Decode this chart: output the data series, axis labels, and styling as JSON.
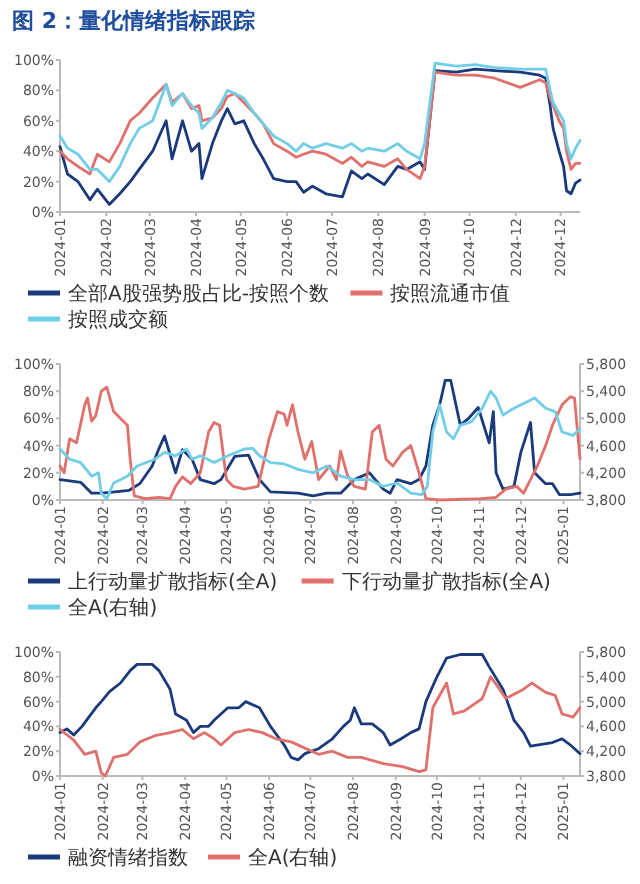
{
  "chart_data": [
    {
      "type": "line",
      "title": "图 2：量化情绪指标跟踪",
      "legend": "bottom",
      "x": [
        "2024-01-01",
        "2024-01-06",
        "2024-01-13",
        "2024-01-21",
        "2024-01-26",
        "2024-02-03",
        "2024-02-10",
        "2024-02-17",
        "2024-02-23",
        "2024-03-03",
        "2024-03-12",
        "2024-03-16",
        "2024-03-23",
        "2024-03-29",
        "2024-04-03",
        "2024-04-05",
        "2024-04-12",
        "2024-04-18",
        "2024-04-22",
        "2024-04-27",
        "2024-05-03",
        "2024-05-10",
        "2024-05-16",
        "2024-05-23",
        "2024-06-01",
        "2024-06-07",
        "2024-06-12",
        "2024-06-18",
        "2024-06-27",
        "2024-07-08",
        "2024-07-14",
        "2024-07-21",
        "2024-07-25",
        "2024-08-05",
        "2024-08-14",
        "2024-08-20",
        "2024-08-29",
        "2024-09-01",
        "2024-09-08",
        "2024-09-22",
        "2024-10-05",
        "2024-10-18",
        "2024-11-04",
        "2024-11-17",
        "2024-11-21",
        "2024-11-24",
        "2024-11-26",
        "2024-11-30",
        "2024-12-03",
        "2024-12-05",
        "2024-12-08",
        "2024-12-11",
        "2024-12-14"
      ],
      "xlim": [
        "2024-01-01",
        "2024-12-14"
      ],
      "xticks": [
        "2024-01",
        "2024-02",
        "2024-03",
        "2024-04",
        "2024-05",
        "2024-06",
        "2024-07",
        "2024-08",
        "2024-09",
        "2024-10",
        {
          "value": "2024-11",
          "label": "2024-12"
        },
        "2024-12"
      ],
      "ylim": [
        0,
        100
      ],
      "yticks": [
        {
          "value": 0,
          "label": "0%"
        },
        {
          "value": 20,
          "label": "20%"
        },
        {
          "value": 40,
          "label": "40%"
        },
        {
          "value": 60,
          "label": "60%"
        },
        {
          "value": 80,
          "label": "80%"
        },
        {
          "value": 100,
          "label": "100%"
        }
      ],
      "series": [
        {
          "name": "全部A股强势股占比-按照个数",
          "color": "#1a3a7c",
          "values": [
            43,
            25,
            20,
            8,
            15,
            5,
            12,
            20,
            28,
            40,
            60,
            35,
            60,
            40,
            45,
            22,
            45,
            60,
            68,
            58,
            60,
            45,
            35,
            22,
            20,
            20,
            13,
            17,
            12,
            10,
            27,
            22,
            25,
            18,
            30,
            28,
            33,
            28,
            93,
            92,
            94,
            93,
            92,
            90,
            88,
            70,
            55,
            40,
            30,
            14,
            12,
            19,
            21
          ]
        },
        {
          "name": "按照流通市值",
          "color": "#e0706c",
          "values": [
            40,
            35,
            30,
            25,
            38,
            33,
            45,
            60,
            65,
            75,
            84,
            72,
            78,
            68,
            70,
            60,
            62,
            68,
            76,
            78,
            72,
            65,
            58,
            45,
            40,
            36,
            38,
            40,
            38,
            32,
            36,
            30,
            33,
            30,
            35,
            28,
            22,
            30,
            92,
            90,
            90,
            88,
            82,
            87,
            85,
            75,
            70,
            60,
            55,
            40,
            28,
            32,
            32
          ]
        },
        {
          "name": "按照成交额",
          "color": "#72cde6",
          "values": [
            50,
            42,
            38,
            28,
            28,
            20,
            30,
            45,
            55,
            60,
            84,
            70,
            78,
            70,
            65,
            55,
            62,
            72,
            80,
            78,
            75,
            65,
            58,
            50,
            45,
            40,
            45,
            42,
            45,
            42,
            45,
            40,
            42,
            40,
            45,
            40,
            35,
            45,
            98,
            96,
            97,
            95,
            94,
            94,
            94,
            80,
            72,
            65,
            60,
            45,
            35,
            42,
            47
          ]
        }
      ]
    },
    {
      "type": "line",
      "legend": "bottom",
      "xlim": [
        "2024-01-01",
        "2025-01-13"
      ],
      "xticks": [
        "2024-01",
        "2024-02",
        "2024-03",
        "2024-04",
        "2024-05",
        "2024-06",
        "2024-07",
        "2024-08",
        "2024-09",
        "2024-10",
        "2024-11",
        "2024-12",
        "2025-01"
      ],
      "ylim": [
        0,
        100
      ],
      "yticks": [
        {
          "value": 0,
          "label": "0%"
        },
        {
          "value": 20,
          "label": "20%"
        },
        {
          "value": 40,
          "label": "40%"
        },
        {
          "value": 60,
          "label": "60%"
        },
        {
          "value": 80,
          "label": "80%"
        },
        {
          "value": 100,
          "label": "100%"
        }
      ],
      "y2lim": [
        3800,
        5800
      ],
      "y2ticks": [
        {
          "value": 3800,
          "label": "3,800"
        },
        {
          "value": 4200,
          "label": "4,200"
        },
        {
          "value": 4600,
          "label": "4,600"
        },
        {
          "value": 5000,
          "label": "5,000"
        },
        {
          "value": 5400,
          "label": "5,400"
        },
        {
          "value": 5800,
          "label": "5,800"
        }
      ],
      "series": [
        {
          "name": "上行动量扩散指标(全A)",
          "color": "#1a3a7c",
          "x": [
            "2024-01-01",
            "2024-01-08",
            "2024-01-16",
            "2024-01-24",
            "2024-01-31",
            "2024-02-10",
            "2024-02-20",
            "2024-02-28",
            "2024-03-08",
            "2024-03-13",
            "2024-03-17",
            "2024-03-25",
            "2024-03-30",
            "2024-04-06",
            "2024-04-12",
            "2024-04-22",
            "2024-04-27",
            "2024-05-07",
            "2024-05-17",
            "2024-05-25",
            "2024-06-02",
            "2024-06-22",
            "2024-07-03",
            "2024-07-13",
            "2024-07-23",
            "2024-08-02",
            "2024-08-13",
            "2024-08-23",
            "2024-08-28",
            "2024-09-02",
            "2024-09-12",
            "2024-09-18",
            "2024-09-23",
            "2024-09-28",
            "2024-10-03",
            "2024-10-07",
            "2024-10-11",
            "2024-10-18",
            "2024-10-24",
            "2024-10-31",
            "2024-11-08",
            "2024-11-11",
            "2024-11-13",
            "2024-11-18",
            "2024-11-26",
            "2024-12-01",
            "2024-12-08",
            "2024-12-11",
            "2024-12-19",
            "2024-12-24",
            "2024-12-29",
            "2025-01-06",
            "2025-01-13"
          ],
          "values": [
            15,
            14,
            13,
            5,
            5,
            6,
            7,
            12,
            25,
            38,
            47,
            20,
            37,
            30,
            15,
            12,
            15,
            32,
            33,
            15,
            6,
            5,
            3,
            5,
            5,
            15,
            20,
            8,
            5,
            15,
            12,
            15,
            25,
            55,
            70,
            88,
            88,
            55,
            60,
            68,
            42,
            65,
            20,
            8,
            10,
            35,
            57,
            20,
            12,
            12,
            4,
            4,
            5
          ]
        },
        {
          "name": "下行动量扩散指标(全A)",
          "color": "#e0706c",
          "x": [
            "2024-01-01",
            "2024-01-04",
            "2024-01-08",
            "2024-01-13",
            "2024-01-19",
            "2024-01-21",
            "2024-01-24",
            "2024-01-27",
            "2024-01-31",
            "2024-02-04",
            "2024-02-09",
            "2024-02-14",
            "2024-02-19",
            "2024-02-21",
            "2024-02-24",
            "2024-03-03",
            "2024-03-13",
            "2024-03-21",
            "2024-03-25",
            "2024-03-30",
            "2024-04-05",
            "2024-04-12",
            "2024-04-18",
            "2024-04-22",
            "2024-04-26",
            "2024-05-01",
            "2024-05-06",
            "2024-05-14",
            "2024-05-24",
            "2024-06-01",
            "2024-06-07",
            "2024-06-12",
            "2024-06-14",
            "2024-06-18",
            "2024-06-22",
            "2024-06-27",
            "2024-07-02",
            "2024-07-07",
            "2024-07-15",
            "2024-07-20",
            "2024-07-23",
            "2024-07-28",
            "2024-08-02",
            "2024-08-10",
            "2024-08-15",
            "2024-08-20",
            "2024-08-25",
            "2024-08-30",
            "2024-09-06",
            "2024-09-12",
            "2024-09-18",
            "2024-09-23",
            "2024-10-03",
            "2024-11-02",
            "2024-11-13",
            "2024-11-20",
            "2024-11-28",
            "2024-12-03",
            "2024-12-08",
            "2024-12-13",
            "2024-12-19",
            "2024-12-24",
            "2024-12-31",
            "2025-01-06",
            "2025-01-09",
            "2025-01-13"
          ],
          "values": [
            25,
            20,
            45,
            42,
            70,
            75,
            58,
            62,
            80,
            83,
            65,
            60,
            55,
            30,
            3,
            1,
            2,
            1,
            10,
            17,
            12,
            20,
            50,
            57,
            55,
            15,
            10,
            8,
            10,
            45,
            65,
            63,
            55,
            70,
            50,
            30,
            43,
            15,
            25,
            15,
            36,
            18,
            10,
            8,
            50,
            55,
            30,
            25,
            35,
            40,
            20,
            1,
            0,
            1,
            2,
            8,
            10,
            5,
            15,
            25,
            40,
            55,
            70,
            76,
            75,
            30
          ]
        },
        {
          "name": "全A(右轴)",
          "color": "#72cde6",
          "axis": "y2",
          "x": [
            "2024-01-01",
            "2024-01-08",
            "2024-01-16",
            "2024-01-24",
            "2024-01-29",
            "2024-01-31",
            "2024-02-04",
            "2024-02-09",
            "2024-02-19",
            "2024-02-26",
            "2024-03-10",
            "2024-03-17",
            "2024-03-25",
            "2024-04-02",
            "2024-04-06",
            "2024-04-12",
            "2024-04-22",
            "2024-05-02",
            "2024-05-14",
            "2024-05-20",
            "2024-05-25",
            "2024-06-02",
            "2024-06-12",
            "2024-06-22",
            "2024-07-03",
            "2024-07-13",
            "2024-07-23",
            "2024-08-02",
            "2024-08-13",
            "2024-08-23",
            "2024-09-02",
            "2024-09-12",
            "2024-09-20",
            "2024-09-24",
            "2024-09-28",
            "2024-10-03",
            "2024-10-08",
            "2024-10-13",
            "2024-10-18",
            "2024-10-26",
            "2024-11-03",
            "2024-11-09",
            "2024-11-13",
            "2024-11-18",
            "2024-11-26",
            "2024-12-06",
            "2024-12-11",
            "2024-12-19",
            "2024-12-26",
            "2024-12-31",
            "2025-01-08",
            "2025-01-13"
          ],
          "values": [
            4550,
            4400,
            4350,
            4150,
            4200,
            3900,
            3820,
            4050,
            4150,
            4300,
            4400,
            4500,
            4450,
            4550,
            4400,
            4450,
            4350,
            4450,
            4550,
            4560,
            4450,
            4350,
            4330,
            4250,
            4200,
            4300,
            4150,
            4100,
            4100,
            4000,
            4050,
            3900,
            3880,
            4000,
            4800,
            5200,
            4800,
            4700,
            4900,
            4950,
            5150,
            5400,
            5300,
            5050,
            5150,
            5250,
            5300,
            5150,
            5100,
            4800,
            4750,
            4850
          ]
        }
      ]
    },
    {
      "type": "line",
      "legend": "bottom",
      "xlim": [
        "2024-01-01",
        "2025-01-13"
      ],
      "xticks": [
        "2024-01",
        "2024-02",
        "2024-03",
        "2024-04",
        "2024-05",
        "2024-06",
        "2024-07",
        "2024-08",
        "2024-09",
        "2024-10",
        "2024-11",
        "2024-12",
        "2025-01"
      ],
      "ylim": [
        0,
        100
      ],
      "yticks": [
        {
          "value": 0,
          "label": "0%"
        },
        {
          "value": 20,
          "label": "20%"
        },
        {
          "value": 40,
          "label": "40%"
        },
        {
          "value": 60,
          "label": "60%"
        },
        {
          "value": 80,
          "label": "80%"
        },
        {
          "value": 100,
          "label": "100%"
        }
      ],
      "y2lim": [
        3800,
        5800
      ],
      "y2ticks": [
        {
          "value": 3800,
          "label": "3,800"
        },
        {
          "value": 4200,
          "label": "4,200"
        },
        {
          "value": 4600,
          "label": "4,600"
        },
        {
          "value": 5000,
          "label": "5,000"
        },
        {
          "value": 5400,
          "label": "5,400"
        },
        {
          "value": 5800,
          "label": "5,800"
        }
      ],
      "series": [
        {
          "name": "融资情绪指数",
          "color": "#1a3a7c",
          "x": [
            "2024-01-01",
            "2024-01-06",
            "2024-01-11",
            "2024-01-17",
            "2024-01-27",
            "2024-01-31",
            "2024-02-06",
            "2024-02-14",
            "2024-02-21",
            "2024-02-26",
            "2024-03-08",
            "2024-03-13",
            "2024-03-21",
            "2024-03-25",
            "2024-04-02",
            "2024-04-07",
            "2024-04-12",
            "2024-04-18",
            "2024-04-22",
            "2024-05-02",
            "2024-05-10",
            "2024-05-15",
            "2024-05-25",
            "2024-06-02",
            "2024-06-12",
            "2024-06-17",
            "2024-06-22",
            "2024-06-27",
            "2024-07-07",
            "2024-07-17",
            "2024-07-25",
            "2024-07-30",
            "2024-08-02",
            "2024-08-07",
            "2024-08-15",
            "2024-08-23",
            "2024-08-28",
            "2024-09-05",
            "2024-09-12",
            "2024-09-18",
            "2024-09-23",
            "2024-10-01",
            "2024-10-08",
            "2024-10-18",
            "2024-11-03",
            "2024-11-08",
            "2024-11-18",
            "2024-11-26",
            "2024-12-03",
            "2024-12-08",
            "2024-12-24",
            "2024-12-31",
            "2025-01-06",
            "2025-01-13"
          ],
          "values": [
            35,
            38,
            33,
            40,
            55,
            60,
            68,
            75,
            85,
            90,
            90,
            85,
            70,
            50,
            45,
            35,
            40,
            40,
            45,
            55,
            55,
            60,
            55,
            40,
            25,
            15,
            13,
            18,
            22,
            30,
            40,
            45,
            55,
            42,
            42,
            35,
            25,
            30,
            35,
            38,
            60,
            80,
            95,
            98,
            98,
            88,
            70,
            45,
            35,
            24,
            27,
            30,
            25,
            18
          ]
        },
        {
          "name": "全A(右轴)",
          "color": "#e0706c",
          "axis": "y2",
          "x": [
            "2024-01-01",
            "2024-01-11",
            "2024-01-19",
            "2024-01-27",
            "2024-01-31",
            "2024-02-03",
            "2024-02-09",
            "2024-02-19",
            "2024-02-28",
            "2024-03-10",
            "2024-03-21",
            "2024-03-30",
            "2024-04-07",
            "2024-04-15",
            "2024-04-22",
            "2024-04-27",
            "2024-05-07",
            "2024-05-17",
            "2024-05-27",
            "2024-06-06",
            "2024-06-17",
            "2024-06-27",
            "2024-07-07",
            "2024-07-17",
            "2024-07-28",
            "2024-08-07",
            "2024-08-23",
            "2024-09-06",
            "2024-09-18",
            "2024-09-23",
            "2024-09-28",
            "2024-10-08",
            "2024-10-13",
            "2024-10-21",
            "2024-11-03",
            "2024-11-09",
            "2024-11-14",
            "2024-11-20",
            "2024-12-03",
            "2024-12-09",
            "2024-12-19",
            "2024-12-26",
            "2024-12-31",
            "2025-01-08",
            "2025-01-13"
          ],
          "values": [
            4550,
            4380,
            4150,
            4200,
            3850,
            3800,
            4100,
            4150,
            4350,
            4450,
            4500,
            4550,
            4400,
            4500,
            4400,
            4300,
            4500,
            4550,
            4500,
            4400,
            4350,
            4250,
            4150,
            4200,
            4100,
            4100,
            4000,
            3950,
            3870,
            3900,
            4900,
            5300,
            4800,
            4850,
            5050,
            5400,
            5250,
            5050,
            5200,
            5300,
            5150,
            5100,
            4800,
            4750,
            4900
          ]
        }
      ]
    }
  ]
}
